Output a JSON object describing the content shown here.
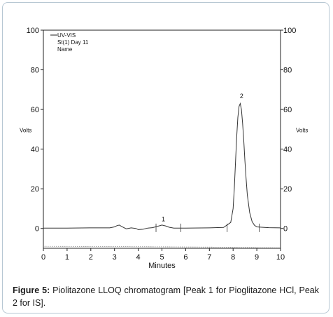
{
  "chart_data": {
    "type": "line",
    "legend": {
      "entries": [
        "UV-VIS",
        "St(1) Day 11",
        "Name"
      ],
      "placement": "top-left"
    },
    "xlabel": "Minutes",
    "ylabel_left": "Volts",
    "ylabel_right": "Volts",
    "xlim": [
      0,
      10
    ],
    "ylim": [
      -10,
      100
    ],
    "x_ticks": [
      "0",
      "1",
      "2",
      "3",
      "4",
      "5",
      "6",
      "7",
      "8",
      "9",
      "10"
    ],
    "y_ticks": [
      "100",
      "80",
      "60",
      "40",
      "20",
      "0"
    ],
    "grid": false,
    "peak_labels": [
      {
        "label": "1",
        "x": 5.0,
        "y": 1.5
      },
      {
        "label": "2",
        "x": 8.3,
        "y": 63.5
      }
    ],
    "series": [
      {
        "x": [
          0.0,
          1.0,
          2.0,
          2.8,
          3.0,
          3.1,
          3.2,
          3.3,
          3.5,
          3.7,
          3.9,
          4.0,
          4.2,
          4.4,
          4.6,
          4.8,
          5.0,
          5.15,
          5.3,
          5.5,
          6.0,
          7.0,
          7.6,
          7.9,
          8.0,
          8.05,
          8.1,
          8.15,
          8.2,
          8.25,
          8.3,
          8.35,
          8.4,
          8.45,
          8.5,
          8.55,
          8.6,
          8.7,
          8.8,
          8.9,
          9.0,
          9.2,
          9.5,
          10.0
        ],
        "y": [
          0.2,
          0.2,
          0.3,
          0.3,
          0.8,
          1.4,
          1.7,
          1.0,
          -0.2,
          0.3,
          0.0,
          -0.6,
          -0.4,
          0.2,
          0.4,
          1.0,
          1.7,
          1.3,
          0.6,
          0.2,
          0.2,
          0.3,
          0.5,
          3.0,
          10.0,
          20.0,
          33.0,
          46.0,
          56.0,
          61.5,
          63.0,
          60.0,
          53.0,
          44.0,
          34.0,
          25.0,
          17.0,
          8.0,
          3.5,
          1.6,
          0.8,
          0.6,
          0.4,
          0.3
        ]
      },
      {
        "x": [
          0.0,
          4.0,
          7.0,
          8.0,
          9.0,
          10.0
        ],
        "y": [
          -9.0,
          -9.2,
          -9.4,
          -9.5,
          -9.7,
          -9.8
        ]
      }
    ],
    "event_marks": [
      4.75,
      5.8,
      7.75,
      9.1
    ]
  },
  "caption": {
    "bold": "Figure 5:",
    "text": " Piolitazone LLOQ chromatogram [Peak 1 for Pioglitazone HCl, Peak 2 for IS]."
  }
}
